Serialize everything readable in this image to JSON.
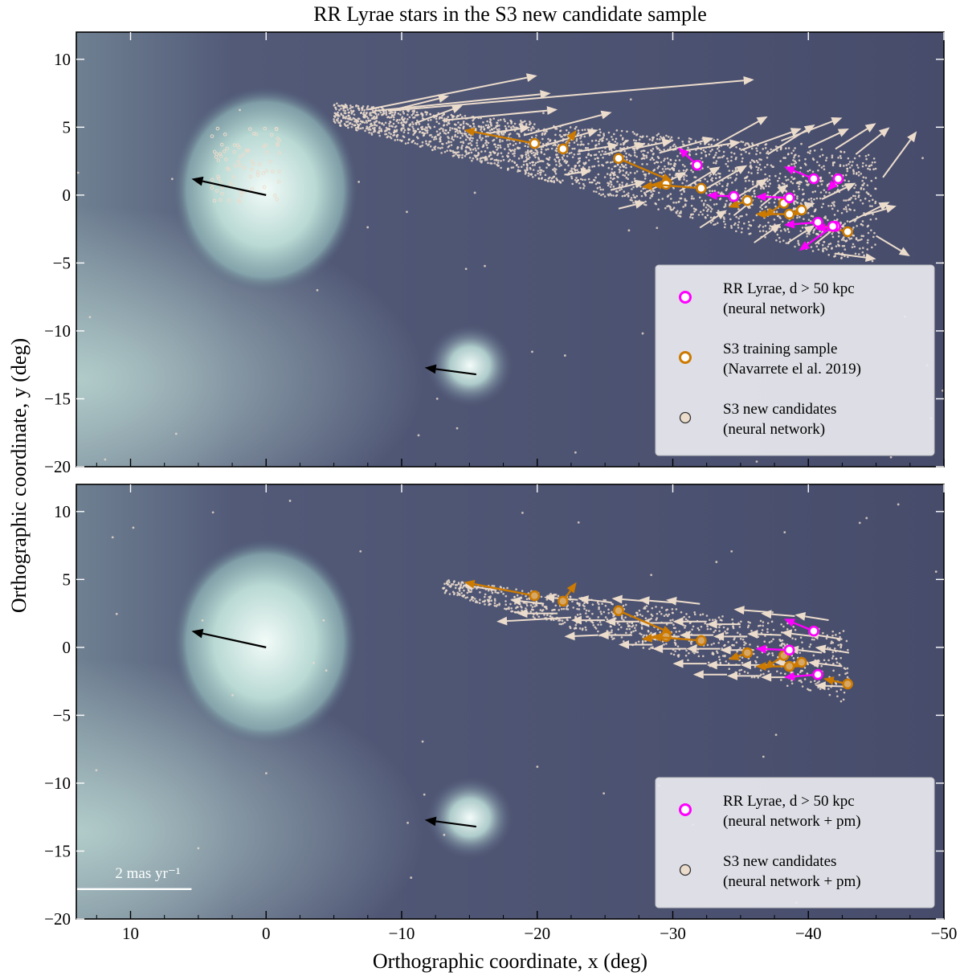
{
  "figure": {
    "title": "RR Lyrae stars in the S3 new candidate sample",
    "xlabel": "Orthographic coordinate, x (deg)",
    "ylabel": "Orthographic coordinate, y (deg)",
    "scale_bar_label": "2 mas yr⁻¹"
  },
  "colors": {
    "background_sky": "#4a4f6e",
    "galaxy_glow": "#d8f0ec",
    "rr_lyrae": "#ff00ff",
    "training": "#cc7a00",
    "candidates": "#ecdccc",
    "galaxy_pm": "#000000",
    "scale_arrow": "#ffffff"
  },
  "chart_data": [
    {
      "type": "scatter",
      "panel": "top",
      "title": "RR Lyrae stars in the S3 new candidate sample",
      "xlabel": "Orthographic coordinate, x (deg)",
      "ylabel": "Orthographic coordinate, y (deg)",
      "xlim": [
        14,
        -50
      ],
      "ylim": [
        -20,
        12
      ],
      "xticks": [
        10,
        0,
        -10,
        -20,
        -30,
        -40,
        -50
      ],
      "yticks": [
        10,
        5,
        0,
        -5,
        -10,
        -15,
        -20
      ],
      "legend_position": "bottom-right",
      "legend": [
        {
          "label": "RR Lyrae, d > 50 kpc",
          "sub": "(neural network)",
          "kind": "rr"
        },
        {
          "label": "S3 training sample",
          "sub": "(Navarrete el al. 2019)",
          "kind": "train"
        },
        {
          "label": "S3 new candidates",
          "sub": "(neural network)",
          "kind": "cand"
        }
      ],
      "galaxy_pm_arrows": [
        {
          "name": "LMC",
          "x": 0,
          "y": 0,
          "dx": 5.5,
          "dy": 1.2
        },
        {
          "name": "SMC",
          "x": -15.5,
          "y": -13.2,
          "dx": 3.8,
          "dy": 0.5
        }
      ],
      "candidate_arrows": [
        {
          "x": -7.5,
          "y": 6.3,
          "dx": -12.5,
          "dy": 2.5
        },
        {
          "x": -8,
          "y": 6.2,
          "dx": -13,
          "dy": 1.3
        },
        {
          "x": -9,
          "y": 6.2,
          "dx": -27,
          "dy": 2.3
        },
        {
          "x": -9.5,
          "y": 6.3,
          "dx": -4,
          "dy": 1.0
        },
        {
          "x": -11,
          "y": 5.3,
          "dx": -3.5,
          "dy": 1.3
        },
        {
          "x": -13,
          "y": 5.5,
          "dx": -8.5,
          "dy": 0.8
        },
        {
          "x": -16,
          "y": 4.5,
          "dx": -3.5,
          "dy": 0.5
        },
        {
          "x": -19,
          "y": 4.4,
          "dx": -6.5,
          "dy": 1.7
        },
        {
          "x": -20,
          "y": 3.5,
          "dx": -4.5,
          "dy": 1.3
        },
        {
          "x": -23,
          "y": 3.2,
          "dx": -3,
          "dy": 0.5
        },
        {
          "x": -25,
          "y": 3.0,
          "dx": -3,
          "dy": 0.8
        },
        {
          "x": -27,
          "y": 3.4,
          "dx": -3,
          "dy": 0.6
        },
        {
          "x": -29,
          "y": 3.1,
          "dx": -4,
          "dy": 1.1
        },
        {
          "x": -31,
          "y": 3.3,
          "dx": -4,
          "dy": 0.6
        },
        {
          "x": -33,
          "y": 3.6,
          "dx": -4,
          "dy": 2.2
        },
        {
          "x": -35,
          "y": 3.3,
          "dx": -4.5,
          "dy": 1.6
        },
        {
          "x": -37,
          "y": 3.0,
          "dx": -3.5,
          "dy": 2.2
        },
        {
          "x": -38,
          "y": 4.0,
          "dx": -4.5,
          "dy": 1.7
        },
        {
          "x": -40,
          "y": 3.5,
          "dx": -3,
          "dy": 1.4
        },
        {
          "x": -42,
          "y": 3.4,
          "dx": -3,
          "dy": 1.9
        },
        {
          "x": -43.5,
          "y": 3.0,
          "dx": -2.5,
          "dy": 2.0
        },
        {
          "x": -45.5,
          "y": 1.3,
          "dx": -2.5,
          "dy": 3.4
        },
        {
          "x": -44,
          "y": -1.5,
          "dx": -2.5,
          "dy": 0.7
        },
        {
          "x": -45,
          "y": -3.0,
          "dx": -2.5,
          "dy": -1.5
        },
        {
          "x": -22,
          "y": 1.5,
          "dx": -2,
          "dy": 0.3
        },
        {
          "x": -25.5,
          "y": 0.4,
          "dx": -2.5,
          "dy": 0.6
        },
        {
          "x": -28,
          "y": 0.2,
          "dx": -3,
          "dy": 1.5
        },
        {
          "x": -30.5,
          "y": 0.3,
          "dx": -3,
          "dy": 1.8
        },
        {
          "x": -32.5,
          "y": 0.5,
          "dx": -3,
          "dy": 1.7
        },
        {
          "x": -34.5,
          "y": -0.3,
          "dx": -2.5,
          "dy": 1.5
        },
        {
          "x": -36.5,
          "y": -0.8,
          "dx": -2,
          "dy": 1.6
        },
        {
          "x": -38.5,
          "y": -1.2,
          "dx": -2,
          "dy": 0.6
        },
        {
          "x": -41,
          "y": -0.3,
          "dx": -2.5,
          "dy": 1.2
        },
        {
          "x": -43,
          "y": -2.0,
          "dx": -3,
          "dy": 1.5
        },
        {
          "x": -32,
          "y": -2.4,
          "dx": -2,
          "dy": 1.3
        },
        {
          "x": -34.5,
          "y": -1.5,
          "dx": -1.5,
          "dy": 1.2
        },
        {
          "x": -36,
          "y": -3.5,
          "dx": -2,
          "dy": 1.4
        },
        {
          "x": -38.5,
          "y": -3.5,
          "dx": -2,
          "dy": 1.3
        },
        {
          "x": -40.5,
          "y": -3.6,
          "dx": -2,
          "dy": 1.6
        },
        {
          "x": -42,
          "y": -4.3,
          "dx": -3,
          "dy": -0.4
        },
        {
          "x": -26,
          "y": -1.0,
          "dx": -2,
          "dy": 0.5
        }
      ],
      "training": [
        {
          "x": -19.8,
          "y": 3.8,
          "dx": 5.2,
          "dy": 1.0
        },
        {
          "x": -21.9,
          "y": 3.4,
          "dx": -1,
          "dy": 1.4
        },
        {
          "x": -26.0,
          "y": 2.7,
          "dx": -4,
          "dy": -1.7
        },
        {
          "x": -29.5,
          "y": 0.8,
          "dx": 1.8,
          "dy": -0.2
        },
        {
          "x": -32.1,
          "y": 0.5,
          "dx": 3.7,
          "dy": 0.3
        },
        {
          "x": -35.5,
          "y": -0.4,
          "dx": 1.4,
          "dy": -0.5
        },
        {
          "x": -38.2,
          "y": -0.6,
          "dx": 1.5,
          "dy": -1
        },
        {
          "x": -39.5,
          "y": -1.1,
          "dx": 0.8,
          "dy": -0.4
        },
        {
          "x": -38.6,
          "y": -1.4,
          "dx": 2.5,
          "dy": 0
        },
        {
          "x": -42.9,
          "y": -2.7,
          "dx": 1.8,
          "dy": 0.4
        }
      ],
      "rr_lyrae": [
        {
          "x": -31.8,
          "y": 2.2,
          "dx": 1.4,
          "dy": 1.3
        },
        {
          "x": -34.5,
          "y": -0.1,
          "dx": 2,
          "dy": 0.1
        },
        {
          "x": -38.6,
          "y": -0.2,
          "dx": 2.5,
          "dy": 0.1
        },
        {
          "x": -40.4,
          "y": 1.2,
          "dx": 2.2,
          "dy": 0.9
        },
        {
          "x": -42.2,
          "y": 1.2,
          "dx": 0.8,
          "dy": -0.9
        },
        {
          "x": -40.7,
          "y": -2.0,
          "dx": 2.5,
          "dy": -0.2
        },
        {
          "x": -42.0,
          "y": -2.3,
          "dx": 1.5,
          "dy": -0.2
        },
        {
          "x": -41.8,
          "y": -2.3,
          "dx": 2.5,
          "dy": -1.8
        }
      ]
    },
    {
      "type": "scatter",
      "panel": "bottom",
      "xlabel": "Orthographic coordinate, x (deg)",
      "ylabel": "Orthographic coordinate, y (deg)",
      "xlim": [
        14,
        -50
      ],
      "ylim": [
        -20,
        12
      ],
      "xticks": [
        10,
        0,
        -10,
        -20,
        -30,
        -40,
        -50
      ],
      "yticks": [
        10,
        5,
        0,
        -5,
        -10,
        -15,
        -20
      ],
      "legend_position": "bottom-right",
      "legend": [
        {
          "label": "RR Lyrae, d > 50 kpc",
          "sub": "(neural network + pm)",
          "kind": "rr"
        },
        {
          "label": "S3 new candidates",
          "sub": "(neural network + pm)",
          "kind": "cand"
        }
      ],
      "galaxy_pm_arrows": [
        {
          "name": "LMC",
          "x": 0,
          "y": 0,
          "dx": 5.5,
          "dy": 1.2
        },
        {
          "name": "SMC",
          "x": -15.5,
          "y": -13.2,
          "dx": 3.8,
          "dy": 0.5
        }
      ],
      "candidate_arrows": [
        {
          "x": -17,
          "y": 4.2,
          "dx": 2.5,
          "dy": 0.4
        },
        {
          "x": -20.5,
          "y": 3.2,
          "dx": 2.5,
          "dy": 0.3
        },
        {
          "x": -23,
          "y": 3.5,
          "dx": 2.5,
          "dy": 0.2
        },
        {
          "x": -25.5,
          "y": 3.3,
          "dx": 2.5,
          "dy": 0.3
        },
        {
          "x": -28,
          "y": 3.4,
          "dx": 2.5,
          "dy": 0.2
        },
        {
          "x": -30,
          "y": 3.3,
          "dx": 2.5,
          "dy": 0.2
        },
        {
          "x": -32,
          "y": 3.2,
          "dx": 2.5,
          "dy": 0.3
        },
        {
          "x": -21.5,
          "y": 2.5,
          "dx": 3,
          "dy": 0.0
        },
        {
          "x": -22.5,
          "y": 2.2,
          "dx": 5.5,
          "dy": -0.3
        },
        {
          "x": -25,
          "y": 2.0,
          "dx": 2.5,
          "dy": 0.0
        },
        {
          "x": -27.5,
          "y": 1.9,
          "dx": 2.5,
          "dy": 0.0
        },
        {
          "x": -30,
          "y": 1.8,
          "dx": 2.5,
          "dy": 0.0
        },
        {
          "x": -32.5,
          "y": 1.9,
          "dx": 2.5,
          "dy": 0.0
        },
        {
          "x": -35,
          "y": 1.7,
          "dx": 2.5,
          "dy": 0.0
        },
        {
          "x": -37,
          "y": 2.6,
          "dx": 2.5,
          "dy": 0.2
        },
        {
          "x": -39,
          "y": 2.3,
          "dx": 2.5,
          "dy": 0.2
        },
        {
          "x": -41.5,
          "y": 2.0,
          "dx": 2.5,
          "dy": 0.4
        },
        {
          "x": -24.5,
          "y": 0.9,
          "dx": 2.5,
          "dy": -0.1
        },
        {
          "x": -27,
          "y": 0.9,
          "dx": 2.5,
          "dy": 0.0
        },
        {
          "x": -30.5,
          "y": 0.8,
          "dx": 2.5,
          "dy": 0.0
        },
        {
          "x": -33,
          "y": 0.9,
          "dx": 2.5,
          "dy": 0.0
        },
        {
          "x": -35.5,
          "y": 0.8,
          "dx": 2.5,
          "dy": 0.0
        },
        {
          "x": -38,
          "y": 0.9,
          "dx": 2.5,
          "dy": 0.1
        },
        {
          "x": -40.5,
          "y": 0.8,
          "dx": 2.5,
          "dy": 0.3
        },
        {
          "x": -42.5,
          "y": 0.6,
          "dx": 2.5,
          "dy": 0.4
        },
        {
          "x": -28.5,
          "y": 0.2,
          "dx": 2.5,
          "dy": 0.0
        },
        {
          "x": -31,
          "y": -0.1,
          "dx": 2.5,
          "dy": 0.0
        },
        {
          "x": -33.5,
          "y": -0.1,
          "dx": 2.5,
          "dy": 0.0
        },
        {
          "x": -36,
          "y": -0.2,
          "dx": 2.5,
          "dy": 0.0
        },
        {
          "x": -41,
          "y": -0.4,
          "dx": 2.5,
          "dy": 0.3
        },
        {
          "x": -43,
          "y": -0.4,
          "dx": 2.5,
          "dy": 0.4
        },
        {
          "x": -32.5,
          "y": -1.2,
          "dx": 2.5,
          "dy": 0.0
        },
        {
          "x": -35,
          "y": -1.3,
          "dx": 2.5,
          "dy": 0.0
        },
        {
          "x": -37.5,
          "y": -1.3,
          "dx": 2.5,
          "dy": 0.0
        },
        {
          "x": -40,
          "y": -1.2,
          "dx": 2.5,
          "dy": 0.1
        },
        {
          "x": -42.5,
          "y": -1.4,
          "dx": 2.5,
          "dy": 0.3
        },
        {
          "x": -34,
          "y": -2.0,
          "dx": 2.5,
          "dy": 0.0
        },
        {
          "x": -36.5,
          "y": -2.1,
          "dx": 2.5,
          "dy": 0.0
        },
        {
          "x": -39,
          "y": -2.2,
          "dx": 2.5,
          "dy": 0.0
        },
        {
          "x": -43,
          "y": -2.9,
          "dx": 2.5,
          "dy": 0.1
        }
      ],
      "training": [
        {
          "x": -19.8,
          "y": 3.8,
          "dx": 5.2,
          "dy": 1.0
        },
        {
          "x": -21.9,
          "y": 3.4,
          "dx": -1,
          "dy": 1.4
        },
        {
          "x": -26.0,
          "y": 2.7,
          "dx": -4,
          "dy": -1.7
        },
        {
          "x": -29.5,
          "y": 0.8,
          "dx": 1.8,
          "dy": -0.2
        },
        {
          "x": -32.1,
          "y": 0.5,
          "dx": 3.7,
          "dy": 0.3
        },
        {
          "x": -35.5,
          "y": -0.4,
          "dx": 1.4,
          "dy": -0.5
        },
        {
          "x": -38.2,
          "y": -0.6,
          "dx": 1.5,
          "dy": -1
        },
        {
          "x": -39.5,
          "y": -1.1,
          "dx": 0.8,
          "dy": -0.4
        },
        {
          "x": -38.6,
          "y": -1.4,
          "dx": 2.5,
          "dy": 0
        },
        {
          "x": -42.9,
          "y": -2.7,
          "dx": 1.8,
          "dy": 0.4
        }
      ],
      "rr_lyrae": [
        {
          "x": -38.6,
          "y": -0.2,
          "dx": 2.5,
          "dy": 0.1
        },
        {
          "x": -40.4,
          "y": 1.2,
          "dx": 2.2,
          "dy": 0.9
        },
        {
          "x": -40.7,
          "y": -2.0,
          "dx": 2.5,
          "dy": -0.2
        }
      ],
      "scale_arrow": {
        "x": 5.5,
        "y": -17.8,
        "dx": 11,
        "dy": 0
      }
    }
  ]
}
